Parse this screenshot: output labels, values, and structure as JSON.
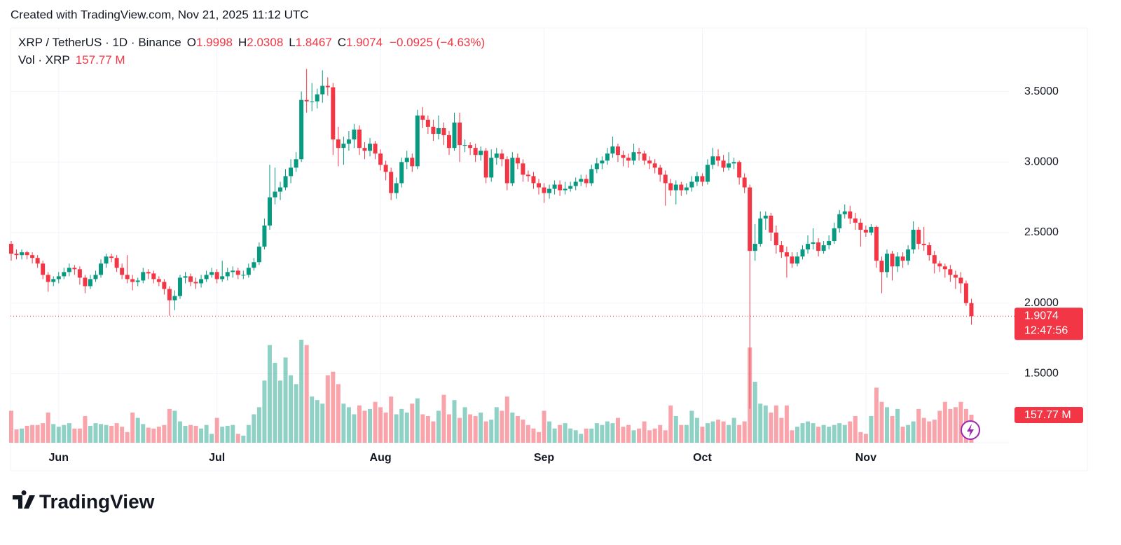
{
  "header": {
    "created": "Created with TradingView.com, Nov 21, 2025 11:12 UTC",
    "symbol": "XRP / TetherUS · 1D · Binance",
    "open_label": "O",
    "high_label": "H",
    "low_label": "L",
    "close_label": "C",
    "change": "−0.0925 (−4.63%)",
    "volume_title": "Vol · XRP",
    "volume_value": "157.77 M",
    "countdown": "12:47:56",
    "logo": "TradingView"
  },
  "chart_data": {
    "type": "candlestick",
    "up_color": "#089981",
    "down_color": "#f23645",
    "grid": true,
    "categories": [
      null,
      null,
      null,
      null,
      null,
      null,
      null,
      null,
      null,
      "Jun",
      null,
      null,
      null,
      null,
      null,
      null,
      null,
      null,
      null,
      null,
      null,
      null,
      null,
      null,
      null,
      null,
      null,
      null,
      null,
      null,
      null,
      null,
      null,
      null,
      null,
      null,
      null,
      null,
      null,
      "Jul",
      null,
      null,
      null,
      null,
      null,
      null,
      null,
      null,
      null,
      null,
      null,
      null,
      null,
      null,
      null,
      null,
      null,
      null,
      null,
      null,
      null,
      null,
      null,
      null,
      null,
      null,
      null,
      null,
      null,
      null,
      "Aug",
      null,
      null,
      null,
      null,
      null,
      null,
      null,
      null,
      null,
      null,
      null,
      null,
      null,
      null,
      null,
      null,
      null,
      null,
      null,
      null,
      null,
      null,
      null,
      null,
      null,
      null,
      null,
      null,
      null,
      null,
      "Sep",
      null,
      null,
      null,
      null,
      null,
      null,
      null,
      null,
      null,
      null,
      null,
      null,
      null,
      null,
      null,
      null,
      null,
      null,
      null,
      null,
      null,
      null,
      null,
      null,
      null,
      null,
      null,
      null,
      null,
      "Oct",
      null,
      null,
      null,
      null,
      null,
      null,
      null,
      null,
      null,
      null,
      null,
      null,
      null,
      null,
      null,
      null,
      null,
      null,
      null,
      null,
      null,
      null,
      null,
      null,
      null,
      null,
      null,
      null,
      null,
      null,
      "Nov",
      null,
      null,
      null,
      null,
      null,
      null,
      null,
      null,
      null,
      null,
      null,
      null,
      null,
      null,
      null,
      null,
      null,
      null,
      null,
      null
    ],
    "open": [
      2.42,
      2.35,
      2.34,
      2.36,
      2.34,
      2.32,
      2.28,
      2.2,
      2.15,
      2.17,
      2.19,
      2.22,
      2.25,
      2.24,
      2.18,
      2.12,
      2.17,
      2.2,
      2.28,
      2.33,
      2.32,
      2.25,
      2.2,
      2.17,
      2.15,
      2.16,
      2.22,
      2.21,
      2.17,
      2.15,
      2.1,
      2.02,
      2.05,
      2.18,
      2.19,
      2.15,
      2.14,
      2.17,
      2.2,
      2.22,
      2.17,
      2.19,
      2.22,
      2.23,
      2.2,
      2.2,
      2.25,
      2.29,
      2.4,
      2.55,
      2.75,
      2.79,
      2.82,
      2.9,
      2.96,
      3.02,
      3.44,
      3.43,
      3.43,
      3.48,
      3.54,
      3.53,
      3.16,
      3.1,
      3.13,
      3.16,
      3.23,
      3.1,
      3.08,
      3.13,
      3.06,
      2.98,
      2.93,
      2.78,
      2.85,
      3.0,
      3.03,
      2.97,
      3.33,
      3.3,
      3.25,
      3.2,
      3.24,
      3.19,
      3.1,
      3.28,
      3.12,
      3.12,
      3.1,
      3.05,
      3.08,
      2.89,
      3.03,
      3.06,
      3.02,
      2.85,
      3.03,
      2.99,
      2.91,
      2.9,
      2.85,
      2.82,
      2.78,
      2.81,
      2.84,
      2.8,
      2.81,
      2.83,
      2.86,
      2.88,
      2.85,
      2.95,
      2.99,
      3.01,
      3.06,
      3.11,
      3.05,
      3.03,
      3.01,
      3.07,
      3.06,
      3.01,
      2.99,
      2.96,
      2.91,
      2.85,
      2.8,
      2.84,
      2.8,
      2.82,
      2.86,
      2.9,
      2.86,
      2.98,
      3.04,
      3.01,
      2.96,
      2.99,
      3.0,
      2.89,
      2.82,
      2.37,
      2.42,
      2.6,
      2.62,
      2.5,
      2.41,
      2.36,
      2.33,
      2.28,
      2.33,
      2.38,
      2.42,
      2.43,
      2.37,
      2.41,
      2.44,
      2.53,
      2.63,
      2.65,
      2.6,
      2.57,
      2.52,
      2.5,
      2.54,
      2.3,
      2.22,
      2.35,
      2.26,
      2.33,
      2.3,
      2.38,
      2.52,
      2.42,
      2.41,
      2.34,
      2.28,
      2.26,
      2.24,
      2.2,
      2.18,
      2.14,
      1.9998
    ],
    "high": [
      2.44,
      2.38,
      2.38,
      2.37,
      2.36,
      2.34,
      2.3,
      2.22,
      2.19,
      2.22,
      2.25,
      2.28,
      2.27,
      2.26,
      2.2,
      2.2,
      2.23,
      2.31,
      2.35,
      2.35,
      2.34,
      2.28,
      2.34,
      2.2,
      2.18,
      2.25,
      2.24,
      2.23,
      2.19,
      2.17,
      2.12,
      2.09,
      2.2,
      2.22,
      2.21,
      2.18,
      2.2,
      2.23,
      2.25,
      2.24,
      2.3,
      2.25,
      2.26,
      2.25,
      2.23,
      2.28,
      2.32,
      2.43,
      2.6,
      2.98,
      2.96,
      2.86,
      2.95,
      3.02,
      3.07,
      3.5,
      3.66,
      3.56,
      3.52,
      3.65,
      3.6,
      3.56,
      3.25,
      3.18,
      3.22,
      3.27,
      3.26,
      3.14,
      3.17,
      3.15,
      3.09,
      3.01,
      2.96,
      2.89,
      3.03,
      3.08,
      3.06,
      3.37,
      3.39,
      3.33,
      3.3,
      3.33,
      3.28,
      3.22,
      3.35,
      3.35,
      3.16,
      3.14,
      3.13,
      3.11,
      3.1,
      3.09,
      3.1,
      3.09,
      3.04,
      3.07,
      3.06,
      3.02,
      2.94,
      2.93,
      2.88,
      2.85,
      2.84,
      2.87,
      2.87,
      2.86,
      2.86,
      2.89,
      2.91,
      2.91,
      2.98,
      3.03,
      3.04,
      3.1,
      3.18,
      3.13,
      3.08,
      3.06,
      3.13,
      3.1,
      3.08,
      3.04,
      3.02,
      2.98,
      2.94,
      2.88,
      2.87,
      2.86,
      2.85,
      2.9,
      2.93,
      2.92,
      3.02,
      3.1,
      3.09,
      3.05,
      3.07,
      3.03,
      3.01,
      2.92,
      2.84,
      2.56,
      2.65,
      2.65,
      2.64,
      2.55,
      2.44,
      2.4,
      2.36,
      2.36,
      2.41,
      2.48,
      2.53,
      2.46,
      2.44,
      2.48,
      2.57,
      2.66,
      2.7,
      2.69,
      2.64,
      2.6,
      2.55,
      2.56,
      2.55,
      2.33,
      2.38,
      2.37,
      2.36,
      2.36,
      2.41,
      2.58,
      2.54,
      2.54,
      2.43,
      2.37,
      2.3,
      2.28,
      2.27,
      2.23,
      2.22,
      2.16,
      2.0308
    ],
    "low": [
      2.3,
      2.31,
      2.31,
      2.31,
      2.28,
      2.25,
      2.17,
      2.08,
      2.12,
      2.14,
      2.17,
      2.19,
      2.2,
      2.13,
      2.07,
      2.1,
      2.15,
      2.18,
      2.25,
      2.29,
      2.22,
      2.17,
      2.14,
      2.09,
      2.12,
      2.14,
      2.17,
      2.14,
      2.12,
      2.06,
      1.91,
      1.95,
      2.03,
      2.14,
      2.12,
      2.1,
      2.11,
      2.15,
      2.18,
      2.14,
      2.15,
      2.16,
      2.18,
      2.17,
      2.17,
      2.18,
      2.23,
      2.27,
      2.38,
      2.52,
      2.7,
      2.73,
      2.8,
      2.85,
      2.93,
      3.0,
      3.35,
      3.36,
      3.38,
      3.42,
      3.47,
      3.05,
      2.97,
      2.98,
      3.08,
      3.1,
      3.05,
      3.02,
      3.04,
      3.02,
      2.94,
      2.87,
      2.73,
      2.74,
      2.82,
      2.95,
      2.93,
      2.95,
      3.24,
      3.2,
      3.15,
      3.16,
      3.12,
      3.05,
      3.08,
      3.0,
      3.07,
      3.05,
      3.0,
      3.01,
      2.85,
      2.86,
      2.98,
      2.97,
      2.8,
      2.83,
      2.95,
      2.86,
      2.86,
      2.81,
      2.77,
      2.71,
      2.74,
      2.77,
      2.76,
      2.77,
      2.79,
      2.8,
      2.83,
      2.82,
      2.83,
      2.92,
      2.95,
      2.98,
      3.03,
      3.0,
      2.97,
      2.96,
      2.98,
      3.01,
      2.98,
      2.95,
      2.92,
      2.86,
      2.69,
      2.76,
      2.7,
      2.76,
      2.77,
      2.79,
      2.83,
      2.83,
      2.84,
      2.95,
      2.97,
      2.93,
      2.94,
      2.95,
      2.84,
      2.78,
      1.25,
      2.3,
      2.4,
      2.52,
      2.44,
      2.35,
      2.32,
      2.18,
      2.25,
      2.26,
      2.31,
      2.35,
      2.38,
      2.33,
      2.35,
      2.38,
      2.42,
      2.5,
      2.6,
      2.56,
      2.52,
      2.4,
      2.47,
      2.48,
      2.25,
      2.07,
      2.18,
      2.16,
      2.22,
      2.25,
      2.27,
      2.35,
      2.38,
      2.37,
      2.3,
      2.21,
      2.22,
      2.18,
      2.15,
      2.1,
      2.07,
      1.98,
      1.8467
    ],
    "close": [
      2.35,
      2.34,
      2.36,
      2.34,
      2.32,
      2.28,
      2.2,
      2.15,
      2.17,
      2.19,
      2.22,
      2.25,
      2.24,
      2.18,
      2.12,
      2.17,
      2.2,
      2.28,
      2.33,
      2.32,
      2.25,
      2.2,
      2.17,
      2.15,
      2.16,
      2.22,
      2.21,
      2.17,
      2.15,
      2.1,
      2.02,
      2.05,
      2.18,
      2.19,
      2.15,
      2.14,
      2.17,
      2.2,
      2.22,
      2.17,
      2.19,
      2.22,
      2.23,
      2.2,
      2.2,
      2.25,
      2.29,
      2.4,
      2.55,
      2.75,
      2.79,
      2.82,
      2.9,
      2.96,
      3.02,
      3.44,
      3.43,
      3.43,
      3.48,
      3.54,
      3.53,
      3.16,
      3.1,
      3.13,
      3.16,
      3.23,
      3.1,
      3.08,
      3.13,
      3.06,
      2.98,
      2.93,
      2.78,
      2.85,
      3.0,
      3.03,
      2.97,
      3.33,
      3.3,
      3.25,
      3.2,
      3.24,
      3.19,
      3.1,
      3.28,
      3.12,
      3.12,
      3.1,
      3.05,
      3.08,
      2.89,
      3.03,
      3.06,
      3.02,
      2.85,
      3.03,
      2.99,
      2.91,
      2.9,
      2.85,
      2.82,
      2.78,
      2.81,
      2.84,
      2.8,
      2.81,
      2.83,
      2.86,
      2.88,
      2.85,
      2.95,
      2.99,
      3.01,
      3.06,
      3.11,
      3.05,
      3.03,
      3.01,
      3.07,
      3.06,
      3.01,
      2.99,
      2.96,
      2.91,
      2.85,
      2.8,
      2.84,
      2.8,
      2.82,
      2.86,
      2.9,
      2.86,
      2.98,
      3.04,
      3.01,
      2.96,
      2.99,
      3.0,
      2.89,
      2.82,
      2.37,
      2.42,
      2.6,
      2.62,
      2.5,
      2.41,
      2.36,
      2.33,
      2.28,
      2.33,
      2.38,
      2.42,
      2.43,
      2.37,
      2.41,
      2.44,
      2.53,
      2.63,
      2.65,
      2.6,
      2.57,
      2.52,
      2.5,
      2.54,
      2.3,
      2.22,
      2.35,
      2.26,
      2.33,
      2.3,
      2.38,
      2.52,
      2.42,
      2.41,
      2.34,
      2.28,
      2.26,
      2.24,
      2.2,
      2.18,
      2.14,
      1.9999,
      1.9074
    ],
    "volume": {
      "axis": "y2",
      "values": [
        180,
        75,
        80,
        95,
        100,
        100,
        110,
        170,
        105,
        90,
        100,
        110,
        80,
        80,
        150,
        95,
        110,
        105,
        100,
        95,
        110,
        90,
        60,
        170,
        140,
        105,
        85,
        80,
        90,
        100,
        190,
        180,
        120,
        95,
        100,
        95,
        80,
        100,
        50,
        140,
        90,
        95,
        100,
        50,
        40,
        100,
        160,
        200,
        350,
        550,
        450,
        350,
        480,
        380,
        330,
        580,
        550,
        260,
        240,
        220,
        380,
        400,
        330,
        220,
        200,
        160,
        210,
        180,
        190,
        230,
        200,
        170,
        260,
        160,
        190,
        170,
        220,
        250,
        160,
        150,
        120,
        180,
        270,
        160,
        240,
        140,
        200,
        160,
        150,
        170,
        120,
        130,
        200,
        180,
        260,
        170,
        150,
        130,
        100,
        80,
        60,
        180,
        120,
        80,
        100,
        110,
        80,
        70,
        50,
        80,
        80,
        110,
        100,
        120,
        110,
        140,
        90,
        100,
        70,
        80,
        120,
        70,
        80,
        100,
        70,
        210,
        150,
        100,
        100,
        180,
        140,
        90,
        110,
        120,
        130,
        120,
        100,
        140,
        100,
        120,
        536,
        343,
        220,
        210,
        170,
        210,
        140,
        210,
        70,
        90,
        110,
        120,
        110,
        90,
        100,
        90,
        100,
        110,
        100,
        120,
        150,
        60,
        50,
        150,
        310,
        230,
        200,
        150,
        190,
        90,
        100,
        120,
        190,
        140,
        120,
        130,
        180,
        230,
        190,
        200,
        230,
        190,
        157.77
      ]
    },
    "ylim": [
      1.01,
      3.95
    ],
    "yticks": [
      {
        "value": 1.5,
        "label": "1.5000"
      },
      {
        "value": 2.0,
        "label": "2.0000"
      },
      {
        "value": 2.5,
        "label": "2.5000"
      },
      {
        "value": 3.0,
        "label": "3.0000"
      },
      {
        "value": 3.5,
        "label": "3.5000"
      }
    ],
    "y2lim": [
      0,
      2335
    ]
  }
}
